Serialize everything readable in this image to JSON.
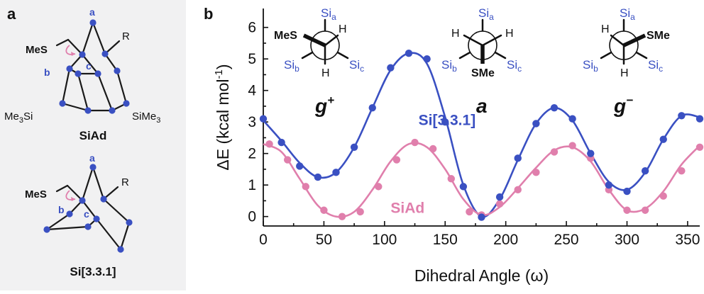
{
  "panel_a": {
    "label": "a",
    "molecule1": {
      "name": "SiAd",
      "substituent_left": "MeS",
      "substituent_right": "R",
      "silyl_left_a": "Me",
      "silyl_left_b": "3",
      "silyl_left_c": "Si",
      "silyl_right_a": "SiMe",
      "silyl_right_b": "3",
      "atom_a": "a",
      "atom_b": "b",
      "atom_c": "c"
    },
    "molecule2": {
      "name": "Si[3.3.1]",
      "substituent_left": "MeS",
      "substituent_right": "R",
      "atom_a": "a",
      "atom_b": "b",
      "atom_c": "c"
    }
  },
  "panel_b": {
    "label": "b",
    "newman": [
      {
        "label_main": "g",
        "label_sup": "+",
        "front_left": "MeS",
        "front_right": "H",
        "front_down": "H",
        "back_top_main": "Si",
        "back_top_sub": "a",
        "back_left_main": "Si",
        "back_left_sub": "b",
        "back_right_main": "Si",
        "back_right_sub": "c"
      },
      {
        "label_main": "a",
        "label_sup": "",
        "front_left": "H",
        "front_right": "H",
        "front_down": "SMe",
        "back_top_main": "Si",
        "back_top_sub": "a",
        "back_left_main": "Si",
        "back_left_sub": "b",
        "back_right_main": "Si",
        "back_right_sub": "c"
      },
      {
        "label_main": "g",
        "label_sup": "−",
        "front_left": "H",
        "front_right": "SMe",
        "front_down": "H",
        "back_top_main": "Si",
        "back_top_sub": "a",
        "back_left_main": "Si",
        "back_left_sub": "b",
        "back_right_main": "Si",
        "back_right_sub": "c"
      }
    ]
  },
  "chart_data": {
    "type": "scatter",
    "xlabel": "Dihedral Angle (ω)",
    "ylabel_main": "ΔE (kcal mol",
    "ylabel_sup": "-1",
    "ylabel_end": ")",
    "xlim": [
      0,
      360
    ],
    "ylim": [
      -0.3,
      6.6
    ],
    "xticks": [
      0,
      50,
      100,
      150,
      200,
      250,
      300,
      350
    ],
    "yticks": [
      0,
      1,
      2,
      3,
      4,
      5,
      6
    ],
    "grid": false,
    "series": [
      {
        "name": "Si[3.3.1]",
        "color": "#3a50c2",
        "points": [
          [
            0,
            3.1
          ],
          [
            15,
            2.35
          ],
          [
            30,
            1.6
          ],
          [
            45,
            1.25
          ],
          [
            60,
            1.4
          ],
          [
            75,
            2.2
          ],
          [
            90,
            3.45
          ],
          [
            105,
            4.72
          ],
          [
            120,
            5.18
          ],
          [
            135,
            5.0
          ],
          [
            150,
            3.0
          ],
          [
            165,
            0.95
          ],
          [
            180,
            -0.02
          ],
          [
            195,
            0.62
          ],
          [
            210,
            1.85
          ],
          [
            225,
            2.95
          ],
          [
            240,
            3.45
          ],
          [
            255,
            3.1
          ],
          [
            270,
            2.0
          ],
          [
            285,
            1.0
          ],
          [
            300,
            0.8
          ],
          [
            315,
            1.45
          ],
          [
            330,
            2.45
          ],
          [
            345,
            3.2
          ],
          [
            360,
            3.1
          ]
        ],
        "curve": [
          [
            0,
            3.05
          ],
          [
            15,
            2.4
          ],
          [
            30,
            1.7
          ],
          [
            45,
            1.25
          ],
          [
            60,
            1.4
          ],
          [
            75,
            2.2
          ],
          [
            90,
            3.45
          ],
          [
            105,
            4.65
          ],
          [
            120,
            5.18
          ],
          [
            135,
            4.85
          ],
          [
            150,
            3.15
          ],
          [
            165,
            1.0
          ],
          [
            180,
            0.0
          ],
          [
            195,
            0.55
          ],
          [
            210,
            1.8
          ],
          [
            225,
            2.95
          ],
          [
            240,
            3.45
          ],
          [
            255,
            3.05
          ],
          [
            270,
            2.0
          ],
          [
            285,
            1.1
          ],
          [
            300,
            0.85
          ],
          [
            315,
            1.4
          ],
          [
            330,
            2.45
          ],
          [
            345,
            3.2
          ],
          [
            360,
            3.15
          ]
        ]
      },
      {
        "name": "SiAd",
        "color": "#e07fac",
        "points": [
          [
            5,
            2.3
          ],
          [
            20,
            1.8
          ],
          [
            35,
            0.95
          ],
          [
            50,
            0.2
          ],
          [
            65,
            0.0
          ],
          [
            80,
            0.15
          ],
          [
            95,
            0.95
          ],
          [
            110,
            1.8
          ],
          [
            125,
            2.35
          ],
          [
            140,
            2.15
          ],
          [
            155,
            1.2
          ],
          [
            170,
            0.15
          ],
          [
            180,
            0.05
          ],
          [
            195,
            0.4
          ],
          [
            210,
            0.85
          ],
          [
            225,
            1.4
          ],
          [
            240,
            2.05
          ],
          [
            255,
            2.25
          ],
          [
            270,
            1.85
          ],
          [
            285,
            0.85
          ],
          [
            300,
            0.2
          ],
          [
            315,
            0.2
          ],
          [
            330,
            0.65
          ],
          [
            345,
            1.45
          ],
          [
            360,
            2.2
          ]
        ],
        "curve": [
          [
            0,
            2.3
          ],
          [
            15,
            2.05
          ],
          [
            30,
            1.2
          ],
          [
            45,
            0.35
          ],
          [
            60,
            0.0
          ],
          [
            75,
            0.15
          ],
          [
            90,
            0.85
          ],
          [
            105,
            1.75
          ],
          [
            120,
            2.3
          ],
          [
            135,
            2.2
          ],
          [
            150,
            1.5
          ],
          [
            165,
            0.55
          ],
          [
            180,
            0.05
          ],
          [
            195,
            0.3
          ],
          [
            210,
            0.9
          ],
          [
            225,
            1.55
          ],
          [
            240,
            2.1
          ],
          [
            255,
            2.2
          ],
          [
            270,
            1.75
          ],
          [
            285,
            0.85
          ],
          [
            300,
            0.2
          ],
          [
            315,
            0.25
          ],
          [
            330,
            0.8
          ],
          [
            345,
            1.65
          ],
          [
            360,
            2.25
          ]
        ]
      }
    ],
    "annotations": [
      {
        "text": "Si[3.3.1]",
        "x": 128,
        "y": 2.9,
        "color": "#3a50c2"
      },
      {
        "text": "SiAd",
        "x": 105,
        "y": 0.12,
        "color": "#e07fac"
      }
    ]
  }
}
